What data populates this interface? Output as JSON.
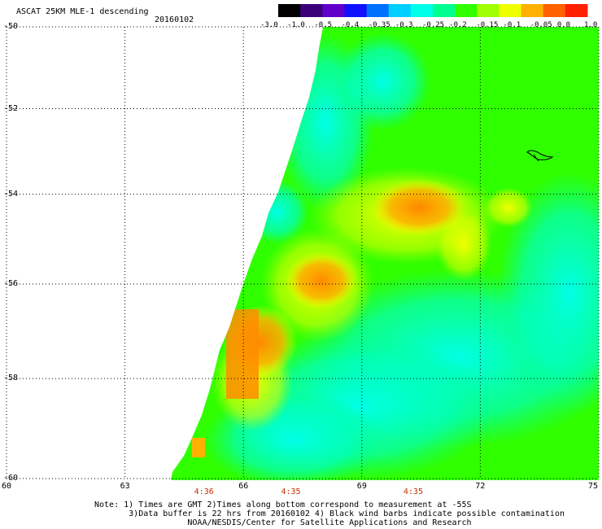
{
  "title": "ASCAT 25KM MLE-1 descending",
  "date": "20160102",
  "colorbar": {
    "tick_labels": [
      "-3.0",
      "-1.0",
      "-0.5",
      "-0.4",
      "-0.35",
      "-0.3",
      "-0.25",
      "-0.2",
      "-0.15",
      "-0.1",
      "-0.05",
      "0.0",
      "1.0"
    ],
    "colors": [
      "#000000",
      "#3a0078",
      "#6000c8",
      "#1010ff",
      "#0070ff",
      "#00d0ff",
      "#00ffe8",
      "#00ff90",
      "#30ff00",
      "#a0ff00",
      "#f0ff00",
      "#ffb000",
      "#ff6000",
      "#ff2000"
    ]
  },
  "map": {
    "lat_labels": [
      "-50",
      "-52",
      "-54",
      "-56",
      "-58",
      "-60"
    ],
    "lon_labels": [
      "60",
      "63",
      "66",
      "69",
      "72",
      "75"
    ],
    "time_labels": [
      "4:36",
      "4:35",
      "4:35"
    ],
    "lat_range": [
      -60,
      -50
    ],
    "lon_range": [
      60,
      75
    ],
    "grid": true,
    "palette": {
      "cyan": "#00ffd8",
      "green": "#00ff60",
      "lime": "#60ff00",
      "yellow": "#ffff00",
      "orange": "#ff8c00"
    }
  },
  "note": {
    "line1": "Note: 1) Times are GMT 2)Times along bottom correspond to measurement at -55S",
    "line2": "3)Data buffer is 22 hrs from 20160102 4) Black wind barbs indicate possible contamination",
    "line3": "NOAA/NESDIS/Center for Satellite Applications and Research"
  }
}
